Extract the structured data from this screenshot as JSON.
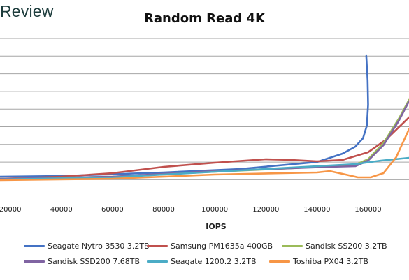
{
  "header": {
    "logo_text": "Review"
  },
  "chart_data": {
    "type": "line",
    "title": "Random Read 4K",
    "xlabel": "IOPS",
    "ylabel": "",
    "xlim": [
      16000,
      176000
    ],
    "x_ticks": [
      20000,
      40000,
      60000,
      80000,
      100000,
      120000,
      140000,
      160000
    ],
    "y_gridlines": 9,
    "grid": true,
    "legend_position": "bottom",
    "series": [
      {
        "name": "Seagate Nytro 3530 3.2TB",
        "color": "#4472c4",
        "points": [
          [
            16000,
            253
          ],
          [
            40000,
            252
          ],
          [
            80000,
            247
          ],
          [
            110000,
            242
          ],
          [
            140000,
            232
          ],
          [
            150000,
            220
          ],
          [
            155000,
            210
          ],
          [
            158000,
            198
          ],
          [
            159500,
            180
          ],
          [
            160000,
            150
          ],
          [
            159800,
            115
          ],
          [
            159300,
            80
          ]
        ]
      },
      {
        "name": "Samsung PM1635a 400GB",
        "color": "#c0504d",
        "points": [
          [
            16000,
            256
          ],
          [
            40000,
            253
          ],
          [
            60000,
            248
          ],
          [
            80000,
            239
          ],
          [
            100000,
            233
          ],
          [
            120000,
            228
          ],
          [
            130000,
            229
          ],
          [
            140000,
            231
          ],
          [
            150000,
            229
          ],
          [
            160000,
            218
          ],
          [
            167000,
            200
          ],
          [
            176000,
            168
          ]
        ]
      },
      {
        "name": "Sandisk SS200 3.2TB",
        "color": "#9bbb59",
        "points": [
          [
            16000,
            256
          ],
          [
            60000,
            253
          ],
          [
            100000,
            246
          ],
          [
            130000,
            241
          ],
          [
            145000,
            238
          ],
          [
            155000,
            236
          ],
          [
            160000,
            228
          ],
          [
            166000,
            205
          ],
          [
            172000,
            170
          ],
          [
            176000,
            143
          ]
        ]
      },
      {
        "name": "Sandisk SSD200 7.68TB",
        "color": "#8064a2",
        "points": [
          [
            16000,
            256
          ],
          [
            60000,
            253
          ],
          [
            100000,
            245
          ],
          [
            130000,
            241
          ],
          [
            145000,
            239
          ],
          [
            155000,
            238
          ],
          [
            160000,
            230
          ],
          [
            166000,
            208
          ],
          [
            172000,
            173
          ],
          [
            176000,
            145
          ]
        ]
      },
      {
        "name": "Seagate 1200.2 3.2TB",
        "color": "#4bacc6",
        "points": [
          [
            16000,
            257
          ],
          [
            60000,
            254
          ],
          [
            100000,
            246
          ],
          [
            140000,
            238
          ],
          [
            155000,
            235
          ],
          [
            165000,
            230
          ],
          [
            176000,
            226
          ]
        ]
      },
      {
        "name": "Toshiba PX04 3.2TB",
        "color": "#f79646",
        "points": [
          [
            16000,
            258
          ],
          [
            60000,
            256
          ],
          [
            100000,
            250
          ],
          [
            140000,
            247
          ],
          [
            145000,
            245
          ],
          [
            150000,
            249
          ],
          [
            156000,
            254
          ],
          [
            161000,
            254
          ],
          [
            166000,
            248
          ],
          [
            171000,
            225
          ],
          [
            176000,
            185
          ]
        ]
      }
    ]
  }
}
